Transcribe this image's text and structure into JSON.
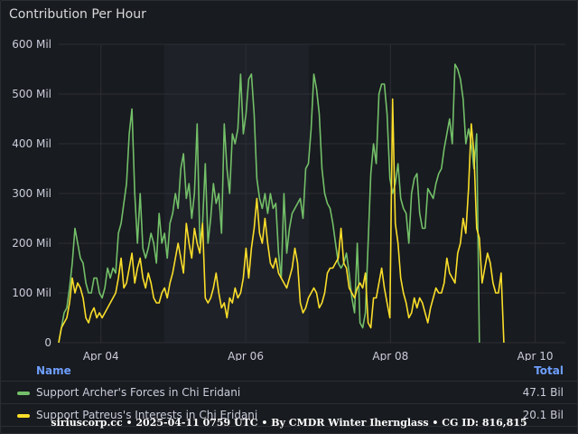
{
  "panel": {
    "title": "Contribution Per Hour"
  },
  "colors": {
    "green": "#73bf69",
    "yellow": "#fade2a",
    "accent": "#6e9fff",
    "grid": "#2c2e35"
  },
  "legend": {
    "name_header": "Name",
    "total_header": "Total",
    "rows": [
      {
        "label": "Support Archer's Forces in Chi Eridani",
        "total": "47.1 Bil",
        "color": "#73bf69"
      },
      {
        "label": "Support Patreus's Interests in Chi Eridani",
        "total": "20.1 Bil",
        "color": "#fade2a"
      }
    ]
  },
  "footer": "siriuscorp.cc • 2025-04-11 0759 UTC • By CMDR Winter Ihernglass • CG ID: 816,815",
  "chart_data": {
    "type": "line",
    "title": "Contribution Per Hour",
    "xlabel": "",
    "ylabel": "",
    "ylim": [
      0,
      600
    ],
    "y_ticks": [
      0,
      100,
      200,
      300,
      400,
      500,
      600
    ],
    "y_tick_labels": [
      "0",
      "100 Mil",
      "200 Mil",
      "300 Mil",
      "400 Mil",
      "500 Mil",
      "600 Mil"
    ],
    "x_ticks": [
      {
        "t": 34,
        "label": "Apr 04"
      },
      {
        "t": 82,
        "label": "Apr 06"
      },
      {
        "t": 130,
        "label": "Apr 08"
      },
      {
        "t": 178,
        "label": "Apr 10"
      }
    ],
    "x_range": [
      20,
      188
    ],
    "grid": true,
    "shaded_band": [
      55,
      103
    ],
    "series": [
      {
        "name": "Support Archer's Forces in Chi Eridani",
        "color": "#73bf69",
        "values": [
          0,
          30,
          60,
          70,
          110,
          160,
          230,
          200,
          170,
          160,
          120,
          100,
          100,
          130,
          130,
          100,
          90,
          110,
          150,
          130,
          150,
          140,
          220,
          240,
          280,
          320,
          420,
          470,
          300,
          200,
          300,
          190,
          170,
          190,
          220,
          200,
          160,
          260,
          200,
          220,
          170,
          240,
          260,
          300,
          270,
          350,
          380,
          290,
          320,
          250,
          300,
          440,
          200,
          240,
          360,
          200,
          250,
          320,
          280,
          300,
          220,
          440,
          350,
          300,
          420,
          400,
          430,
          540,
          420,
          460,
          530,
          540,
          460,
          330,
          290,
          270,
          300,
          260,
          300,
          270,
          280,
          180,
          130,
          300,
          180,
          230,
          260,
          270,
          280,
          290,
          250,
          350,
          360,
          430,
          540,
          510,
          460,
          350,
          300,
          280,
          270,
          240,
          200,
          160,
          150,
          160,
          180,
          140,
          90,
          60,
          200,
          40,
          30,
          60,
          200,
          340,
          400,
          360,
          500,
          520,
          520,
          460,
          330,
          300,
          320,
          360,
          290,
          270,
          260,
          200,
          300,
          330,
          340,
          260,
          230,
          230,
          310,
          300,
          290,
          320,
          340,
          350,
          390,
          420,
          450,
          400,
          560,
          550,
          530,
          490,
          400,
          430,
          400,
          350,
          420,
          0
        ],
        "x_start": 20,
        "x_step": 0.9
      },
      {
        "name": "Support Patreus's Interests in Chi Eridani",
        "color": "#fade2a",
        "values": [
          0,
          30,
          40,
          50,
          80,
          130,
          100,
          120,
          110,
          90,
          50,
          40,
          60,
          70,
          50,
          60,
          50,
          60,
          70,
          80,
          90,
          100,
          130,
          170,
          110,
          120,
          150,
          180,
          120,
          150,
          170,
          130,
          110,
          140,
          120,
          90,
          80,
          80,
          100,
          110,
          90,
          120,
          140,
          170,
          200,
          170,
          140,
          240,
          200,
          170,
          230,
          200,
          180,
          240,
          90,
          80,
          90,
          110,
          140,
          100,
          70,
          80,
          50,
          90,
          80,
          110,
          90,
          100,
          130,
          190,
          130,
          190,
          230,
          290,
          220,
          200,
          250,
          200,
          160,
          150,
          170,
          140,
          130,
          120,
          110,
          130,
          150,
          190,
          160,
          80,
          60,
          70,
          90,
          100,
          110,
          100,
          70,
          80,
          100,
          140,
          150,
          150,
          160,
          170,
          230,
          160,
          150,
          110,
          100,
          90,
          110,
          120,
          110,
          140,
          40,
          30,
          90,
          90,
          120,
          150,
          110,
          80,
          50,
          490,
          240,
          200,
          130,
          100,
          80,
          50,
          60,
          90,
          70,
          90,
          80,
          60,
          40,
          70,
          90,
          110,
          100,
          100,
          120,
          170,
          140,
          130,
          120,
          180,
          200,
          250,
          220,
          310,
          440,
          380,
          230,
          210,
          120,
          150,
          180,
          160,
          120,
          100,
          100,
          140,
          0
        ],
        "x_start": 20,
        "x_step": 0.9
      }
    ]
  }
}
